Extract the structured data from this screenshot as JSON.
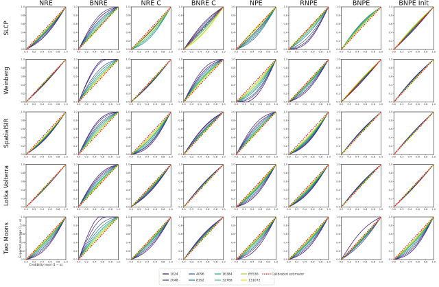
{
  "chart_data": {
    "type": "line",
    "columns": [
      "NRE",
      "BNRE",
      "NRE C",
      "BNRE C",
      "NPE",
      "RNPE",
      "BNPE",
      "BNPE Init"
    ],
    "rows": [
      "SLCP",
      "Weinberg",
      "SpatialSIR",
      "Lotka Volterra",
      "Two Moons"
    ],
    "xlabel": "Credibility level (1 − α)",
    "ylabel": "Expected coverage (1 − α)",
    "xlim": [
      0,
      1
    ],
    "ylim": [
      0,
      1
    ],
    "ticks": [
      "0.0",
      "0.2",
      "0.4",
      "0.6",
      "0.8",
      "1.0"
    ],
    "grid": false,
    "legend_position": "bottom-center",
    "series": [
      {
        "name": "1024",
        "color": "#3b0f70"
      },
      {
        "name": "2048",
        "color": "#46327e"
      },
      {
        "name": "4096",
        "color": "#365c8d"
      },
      {
        "name": "8192",
        "color": "#277f8e"
      },
      {
        "name": "16384",
        "color": "#1fa187"
      },
      {
        "name": "32768",
        "color": "#4ac16d"
      },
      {
        "name": "65536",
        "color": "#a0da39"
      },
      {
        "name": "131072",
        "color": "#e3e418"
      }
    ],
    "reference": {
      "name": "Calibrated estimator",
      "color": "#d62728",
      "style": "dotted"
    },
    "x_points": [
      0,
      0.1,
      0.2,
      0.3,
      0.4,
      0.5,
      0.6,
      0.7,
      0.8,
      0.9,
      1.0
    ],
    "panels": [
      [
        {
          "s": [
            -0.16,
            -0.13,
            -0.1,
            -0.08,
            -0.06,
            -0.05,
            -0.04,
            -0.03
          ]
        },
        {
          "s": [
            0.22,
            0.28,
            0.16,
            0.12,
            0.08,
            0.04,
            0.02,
            0.0
          ]
        },
        {
          "s": [
            -0.06,
            -0.04,
            -0.05,
            -0.2,
            -0.16,
            -0.12,
            -0.08,
            -0.04
          ]
        },
        {
          "s": [
            0.12,
            0.08,
            0.04,
            0.02,
            -0.02,
            -0.05,
            -0.1,
            -0.12
          ]
        },
        {
          "s": [
            -0.12,
            -0.08,
            -0.2,
            -0.16,
            -0.12,
            -0.06,
            -0.02,
            0.02
          ]
        },
        {
          "s": [
            -0.3,
            -0.26,
            -0.2,
            -0.12,
            -0.08,
            -0.04,
            -0.02,
            0.0
          ]
        },
        {
          "s": [
            0.04,
            0.06,
            0.08,
            0.1,
            0.12,
            0.08,
            0.06,
            0.04
          ]
        },
        {
          "s": [
            -0.04,
            -0.02,
            0.0,
            0.02,
            0.03,
            0.02,
            0.04,
            0.05
          ]
        }
      ],
      [
        {
          "s": [
            -0.04,
            -0.03,
            -0.02,
            -0.01,
            0.0,
            0.01,
            0.0,
            0.0
          ]
        },
        {
          "s": [
            0.42,
            0.38,
            0.24,
            0.18,
            0.12,
            0.08,
            0.05,
            0.04
          ]
        },
        {
          "s": [
            -0.06,
            -0.05,
            -0.04,
            -0.03,
            -0.02,
            -0.02,
            -0.01,
            -0.01
          ]
        },
        {
          "s": [
            0.28,
            0.22,
            0.18,
            0.14,
            0.1,
            0.08,
            0.06,
            0.04
          ]
        },
        {
          "s": [
            -0.36,
            -0.3,
            -0.26,
            -0.2,
            -0.16,
            -0.12,
            -0.08,
            -0.05
          ]
        },
        {
          "s": [
            -0.2,
            -0.16,
            -0.12,
            -0.08,
            -0.06,
            -0.04,
            -0.02,
            -0.01
          ]
        },
        {
          "s": [
            -0.04,
            -0.02,
            0.0,
            0.01,
            0.02,
            0.03,
            0.03,
            0.04
          ]
        },
        {
          "s": [
            0.06,
            0.05,
            0.04,
            0.03,
            0.02,
            0.02,
            0.01,
            0.01
          ]
        }
      ],
      [
        {
          "s": [
            -0.12,
            -0.1,
            -0.09,
            -0.08,
            -0.07,
            -0.06,
            -0.05,
            -0.04
          ]
        },
        {
          "s": [
            0.3,
            0.26,
            0.2,
            0.16,
            0.12,
            0.08,
            0.05,
            0.04
          ]
        },
        {
          "s": [
            -0.26,
            -0.22,
            -0.2,
            -0.16,
            -0.12,
            -0.1,
            -0.06,
            -0.04
          ]
        },
        {
          "s": [
            0.14,
            0.12,
            0.08,
            0.06,
            0.04,
            0.02,
            0.02,
            0.01
          ]
        },
        {
          "s": [
            0.24,
            0.18,
            0.14,
            0.1,
            0.06,
            0.04,
            0.02,
            0.01
          ]
        },
        {
          "s": [
            -0.2,
            -0.18,
            -0.16,
            -0.14,
            -0.12,
            -0.1,
            -0.08,
            -0.06
          ]
        },
        {
          "s": [
            0.06,
            0.05,
            0.04,
            0.03,
            0.02,
            0.02,
            0.01,
            0.01
          ]
        },
        {
          "s": [
            0.04,
            0.03,
            0.02,
            0.02,
            0.01,
            0.01,
            0.0,
            0.0
          ]
        }
      ],
      [
        {
          "s": [
            -0.04,
            -0.03,
            -0.03,
            -0.02,
            -0.02,
            -0.01,
            -0.01,
            0.0
          ]
        },
        {
          "s": [
            0.24,
            0.2,
            0.16,
            0.12,
            0.08,
            0.06,
            0.04,
            0.02
          ]
        },
        {
          "s": [
            -0.12,
            -0.1,
            -0.08,
            -0.06,
            -0.04,
            -0.03,
            -0.02,
            -0.01
          ]
        },
        {
          "s": [
            0.06,
            0.05,
            0.04,
            0.03,
            0.02,
            0.02,
            0.01,
            0.01
          ]
        },
        {
          "s": [
            -0.22,
            -0.18,
            -0.14,
            -0.1,
            -0.08,
            -0.06,
            -0.04,
            -0.02
          ]
        },
        {
          "s": [
            -0.16,
            -0.14,
            -0.12,
            -0.1,
            -0.08,
            -0.06,
            -0.04,
            -0.03
          ]
        },
        {
          "s": [
            0.06,
            0.05,
            0.04,
            0.03,
            0.02,
            0.01,
            0.01,
            0.0
          ]
        },
        {
          "s": [
            -0.04,
            -0.03,
            -0.02,
            -0.02,
            -0.01,
            -0.01,
            0.0,
            0.0
          ]
        }
      ],
      [
        {
          "s": [
            -0.24,
            -0.2,
            -0.16,
            -0.12,
            -0.08,
            -0.06,
            -0.04,
            -0.02
          ]
        },
        {
          "s": [
            0.52,
            0.4,
            0.28,
            0.2,
            0.14,
            0.1,
            0.06,
            0.04
          ]
        },
        {
          "s": [
            -0.2,
            -0.16,
            -0.12,
            -0.08,
            -0.06,
            -0.04,
            -0.02,
            -0.01
          ]
        },
        {
          "s": [
            0.1,
            0.08,
            0.06,
            0.05,
            0.04,
            0.03,
            0.02,
            0.01
          ]
        },
        {
          "s": [
            -0.26,
            -0.2,
            -0.16,
            -0.12,
            -0.08,
            -0.06,
            -0.04,
            -0.02
          ]
        },
        {
          "s": [
            -0.22,
            -0.18,
            -0.14,
            -0.1,
            -0.08,
            -0.06,
            -0.04,
            -0.02
          ]
        },
        {
          "s": [
            0.16,
            -0.12,
            -0.08,
            -0.06,
            -0.04,
            -0.02,
            -0.02,
            -0.01
          ]
        },
        {
          "s": [
            -0.26,
            -0.22,
            -0.18,
            -0.14,
            -0.1,
            -0.08,
            -0.06,
            -0.04
          ]
        }
      ]
    ]
  }
}
